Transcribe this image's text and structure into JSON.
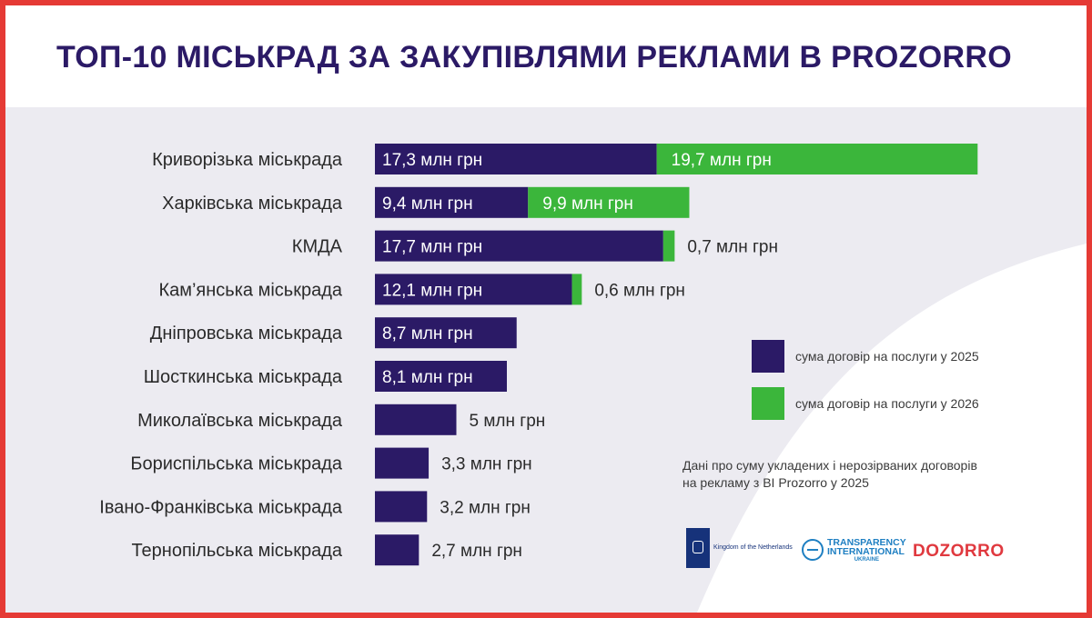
{
  "title": "ТОП-10 МІСЬКРАД ЗА ЗАКУПІВЛЯМИ РЕКЛАМИ В PROZORRO",
  "colors": {
    "frame": "#e53a35",
    "series_2025": "#2b1a66",
    "series_2026": "#3bb63b",
    "title": "#2b1a66",
    "panel": "#ecebf1"
  },
  "chart_data": {
    "type": "bar",
    "orientation": "horizontal",
    "stacked": true,
    "unit": "млн грн",
    "categories": [
      "Криворізька міськрада",
      "Харківська міськрада",
      "КМДА",
      "Кам’янська міськрада",
      "Дніпровська міськрада",
      "Шосткинська міськрада",
      "Миколаївська міськрада",
      "Бориспільська міськрада",
      "Івано-Франківська міськрада",
      "Тернопільська міськрада"
    ],
    "series": [
      {
        "name": "сума договір на послуги у 2025",
        "color": "#2b1a66",
        "values": [
          17.3,
          9.4,
          17.7,
          12.1,
          8.7,
          8.1,
          5,
          3.3,
          3.2,
          2.7
        ],
        "labels": [
          "17,3 млн грн",
          "9,4 млн грн",
          "17,7 млн грн",
          "12,1 млн грн",
          "8,7 млн грн",
          "8,1 млн грн",
          "5 млн грн",
          "3,3 млн грн",
          "3,2 млн грн",
          "2,7 млн грн"
        ]
      },
      {
        "name": "сума договір на послуги у 2026",
        "color": "#3bb63b",
        "values": [
          19.7,
          9.9,
          0.7,
          0.6,
          0,
          0,
          0,
          0,
          0,
          0
        ],
        "labels": [
          "19,7 млн грн",
          "9,9 млн грн",
          "0,7 млн грн",
          "0,6 млн грн",
          "",
          "",
          "",
          "",
          "",
          ""
        ]
      }
    ],
    "legend": "right"
  },
  "legend": [
    {
      "label": "сума договір на послуги у 2025",
      "color": "#2b1a66"
    },
    {
      "label": "сума договір на послуги у 2026",
      "color": "#3bb63b"
    }
  ],
  "note": [
    "Дані про суму укладених і нерозірваних договорів",
    "на рекламу з BI Prozorro у 2025"
  ],
  "logos": {
    "netherlands": "Kingdom of the Netherlands",
    "ti": [
      "TRANSPARENCY",
      "INTERNATIONAL",
      "UKRAINE"
    ],
    "dozorro": "DOZORRO"
  }
}
